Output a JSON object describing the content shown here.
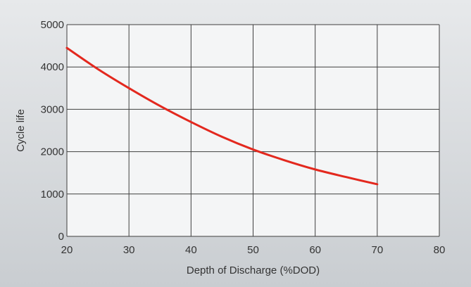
{
  "chart_data": {
    "type": "line",
    "title": "",
    "xlabel": "Depth of Discharge (%DOD)",
    "ylabel": "Cycle life",
    "xlim": [
      20,
      80
    ],
    "ylim": [
      0,
      5000
    ],
    "x_ticks": [
      20,
      30,
      40,
      50,
      60,
      70,
      80
    ],
    "y_ticks": [
      0,
      1000,
      2000,
      3000,
      4000,
      5000
    ],
    "grid": true,
    "series": [
      {
        "color": "#e3281e",
        "x": [
          20,
          25,
          30,
          35,
          40,
          45,
          50,
          55,
          60,
          65,
          70
        ],
        "y": [
          4450,
          3950,
          3500,
          3080,
          2700,
          2350,
          2050,
          1800,
          1580,
          1400,
          1230
        ]
      }
    ]
  }
}
